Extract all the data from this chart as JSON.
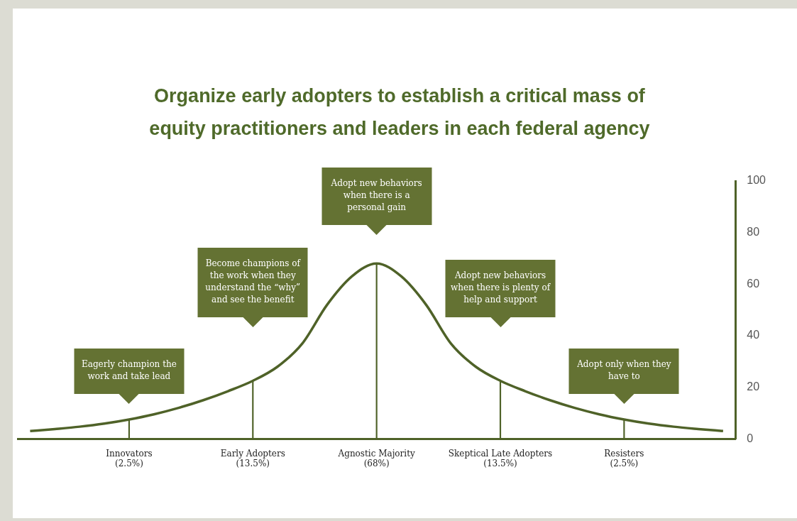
{
  "chart_data": {
    "type": "line",
    "title": "Organize early adopters to establish a critical mass of equity practitioners and leaders in each federal agency",
    "categories": [
      null,
      null,
      null,
      null,
      "Innovators\n(2.5%)",
      null,
      null,
      null,
      null,
      "Early Adopters\n(13.5%)",
      null,
      null,
      null,
      null,
      "Agnostic Majority\n(68%)",
      null,
      null,
      null,
      null,
      "Skeptical Late Adopters\n(13.5%)",
      null,
      null,
      null,
      null,
      "Resisters\n(2.5%)",
      null,
      null,
      null,
      null
    ],
    "series": [
      {
        "color": "#4f6228",
        "values": [
          3,
          3.8,
          4.7,
          5.9,
          7.5,
          9.5,
          12,
          15,
          18.5,
          22.5,
          28,
          37,
          52,
          63,
          68,
          63,
          52,
          37,
          28,
          22.5,
          18.5,
          15,
          12,
          9.5,
          7.5,
          5.9,
          4.7,
          3.8,
          3
        ]
      },
      {
        "type": "bar",
        "color": "#4f6228",
        "values": [
          null,
          null,
          null,
          null,
          7.5,
          null,
          null,
          null,
          null,
          22.5,
          null,
          null,
          null,
          null,
          68,
          null,
          null,
          null,
          null,
          22.5,
          null,
          null,
          null,
          null,
          7.5,
          null,
          null,
          null,
          null
        ]
      }
    ],
    "ylim": [
      0,
      100
    ],
    "yticks": [
      0,
      20,
      40,
      60,
      80,
      100
    ],
    "marker": "none",
    "line_style": "solid",
    "annotations": [
      "Eagerly champion the work and take lead",
      "Become champions of the work when they understand the “why” and see the benefit",
      "Adopt new behaviors when there is a personal gain",
      "Adopt new behaviors when there is plenty of help and support",
      "Adopt only when they have to"
    ]
  }
}
